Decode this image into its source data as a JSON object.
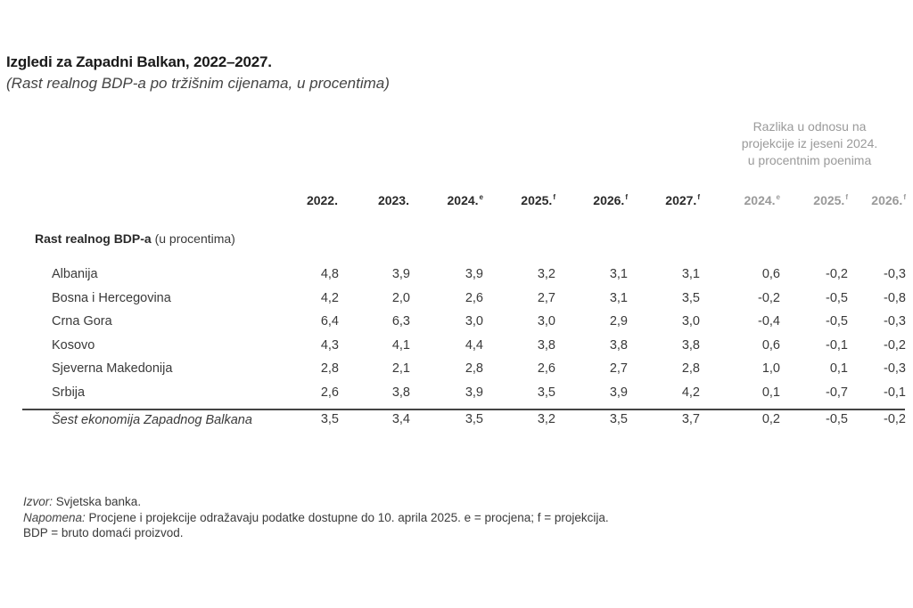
{
  "title": "Izgledi za Zapadni Balkan, 2022–2027.",
  "subtitle": "(Rast realnog BDP-a po tržišnim cijenama, u procentima)",
  "diff_header": {
    "line1": "Razlika u odnosu na",
    "line2": "projekcije iz jeseni 2024.",
    "line3": "u procentnim poenima"
  },
  "columns": [
    {
      "year": "2022.",
      "mark": ""
    },
    {
      "year": "2023.",
      "mark": ""
    },
    {
      "year": "2024.",
      "mark": "e"
    },
    {
      "year": "2025.",
      "mark": "f"
    },
    {
      "year": "2026.",
      "mark": "f"
    },
    {
      "year": "2027.",
      "mark": "f"
    }
  ],
  "diff_columns": [
    {
      "year": "2024.",
      "mark": "e"
    },
    {
      "year": "2025.",
      "mark": "f"
    },
    {
      "year": "2026.",
      "mark": "f"
    }
  ],
  "section": {
    "bold": "Rast realnog BDP-a",
    "rest": " (u procentima)"
  },
  "rows": [
    {
      "label": "Albanija",
      "values": [
        "4,8",
        "3,9",
        "3,9",
        "3,2",
        "3,1",
        "3,1"
      ],
      "diffs": [
        "0,6",
        "-0,2",
        "-0,3"
      ]
    },
    {
      "label": "Bosna i Hercegovina",
      "values": [
        "4,2",
        "2,0",
        "2,6",
        "2,7",
        "3,1",
        "3,5"
      ],
      "diffs": [
        "-0,2",
        "-0,5",
        "-0,8"
      ]
    },
    {
      "label": "Crna Gora",
      "values": [
        "6,4",
        "6,3",
        "3,0",
        "3,0",
        "2,9",
        "3,0"
      ],
      "diffs": [
        "-0,4",
        "-0,5",
        "-0,3"
      ]
    },
    {
      "label": "Kosovo",
      "values": [
        "4,3",
        "4,1",
        "4,4",
        "3,8",
        "3,8",
        "3,8"
      ],
      "diffs": [
        "0,6",
        "-0,1",
        "-0,2"
      ]
    },
    {
      "label": "Sjeverna Makedonija",
      "values": [
        "2,8",
        "2,1",
        "2,8",
        "2,6",
        "2,7",
        "2,8"
      ],
      "diffs": [
        "1,0",
        "0,1",
        "-0,3"
      ]
    },
    {
      "label": "Srbija",
      "values": [
        "2,6",
        "3,8",
        "3,9",
        "3,5",
        "3,9",
        "4,2"
      ],
      "diffs": [
        "0,1",
        "-0,7",
        "-0,1"
      ]
    }
  ],
  "total": {
    "label": "Šest ekonomija Zapadnog Balkana",
    "values": [
      "3,5",
      "3,4",
      "3,5",
      "3,2",
      "3,5",
      "3,7"
    ],
    "diffs": [
      "0,2",
      "-0,5",
      "-0,2"
    ]
  },
  "notes": {
    "source_label": "Izvor:",
    "source_text": " Svjetska banka.",
    "note_label": "Napomena:",
    "note_text": " Procjene i projekcije odražavaju podatke dostupne do 10. aprila 2025. e = procjena; f = projekcija.",
    "abbr": "BDP = bruto domaći proizvod."
  }
}
